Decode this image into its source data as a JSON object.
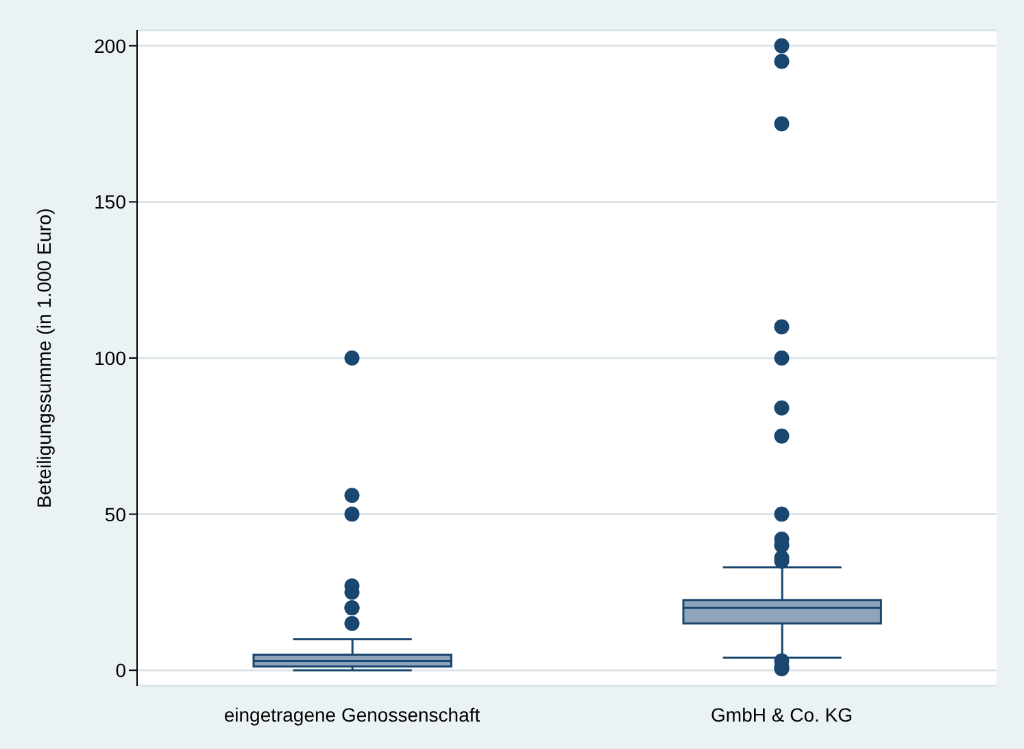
{
  "chart_data": {
    "type": "box",
    "ylabel": "Beteiligungssumme (in 1.000 Euro)",
    "categories": [
      "eingetragene Genossenschaft",
      "GmbH & Co. KG"
    ],
    "boxes": [
      {
        "low": 0,
        "q1": 1.2,
        "median": 3,
        "q3": 5,
        "high": 10,
        "outliers": [
          15,
          20,
          20,
          25,
          27,
          50,
          56,
          100
        ]
      },
      {
        "low": 4,
        "q1": 15,
        "median": 20,
        "q3": 22.5,
        "high": 33,
        "outliers": [
          0.5,
          1,
          3,
          35,
          36,
          40,
          42,
          50,
          75,
          84,
          100,
          110,
          175,
          195,
          200
        ]
      }
    ],
    "color": "#8fa3ba",
    "ylim": [
      -5,
      205
    ],
    "yticks": [
      0,
      50,
      100,
      150,
      200
    ],
    "grid": "y"
  }
}
